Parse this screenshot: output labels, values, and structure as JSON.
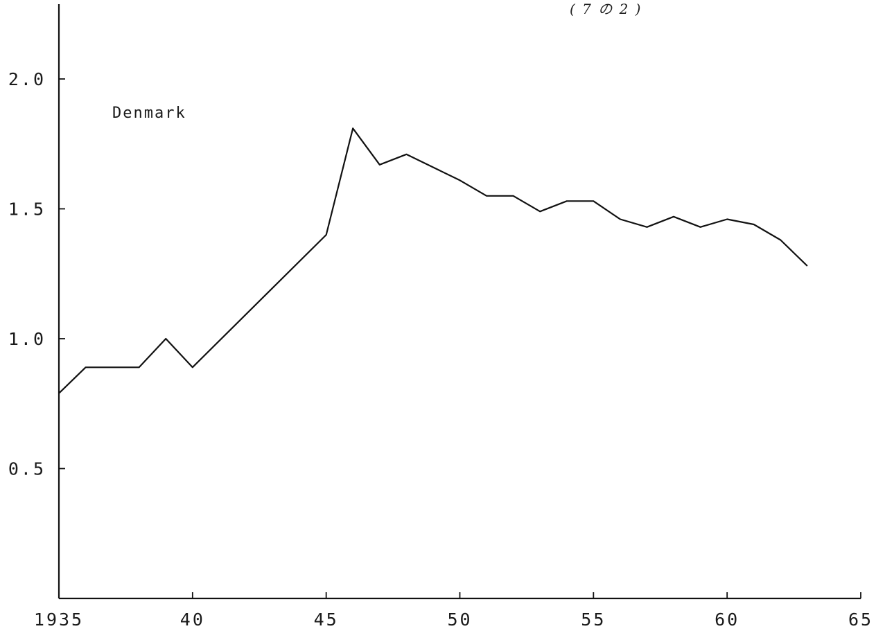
{
  "chart_data": {
    "type": "line",
    "title": "",
    "xlabel": "",
    "ylabel": "",
    "annotation": "( 7 の 2 )",
    "xlim": [
      1935,
      1965
    ],
    "ylim": [
      0,
      2.3
    ],
    "x_ticks": [
      {
        "value": 1935,
        "label": "1935"
      },
      {
        "value": 1940,
        "label": "40"
      },
      {
        "value": 1945,
        "label": "45"
      },
      {
        "value": 1950,
        "label": "50"
      },
      {
        "value": 1955,
        "label": "55"
      },
      {
        "value": 1960,
        "label": "60"
      },
      {
        "value": 1965,
        "label": "65"
      }
    ],
    "y_ticks": [
      {
        "value": 0.5,
        "label": "0.5"
      },
      {
        "value": 1.0,
        "label": "1.0"
      },
      {
        "value": 1.5,
        "label": "1.5"
      },
      {
        "value": 2.0,
        "label": "2.0"
      }
    ],
    "grid": false,
    "series": [
      {
        "name": "Denmark",
        "x": [
          1935,
          1936,
          1937,
          1938,
          1939,
          1940,
          1945,
          1946,
          1947,
          1948,
          1949,
          1950,
          1951,
          1952,
          1953,
          1954,
          1955,
          1956,
          1957,
          1958,
          1959,
          1960,
          1961,
          1962,
          1963
        ],
        "values": [
          0.79,
          0.89,
          0.89,
          0.89,
          1.0,
          0.89,
          1.4,
          1.81,
          1.67,
          1.71,
          1.66,
          1.61,
          1.55,
          1.55,
          1.49,
          1.53,
          1.53,
          1.46,
          1.43,
          1.47,
          1.43,
          1.46,
          1.44,
          1.38,
          1.28
        ]
      }
    ]
  }
}
